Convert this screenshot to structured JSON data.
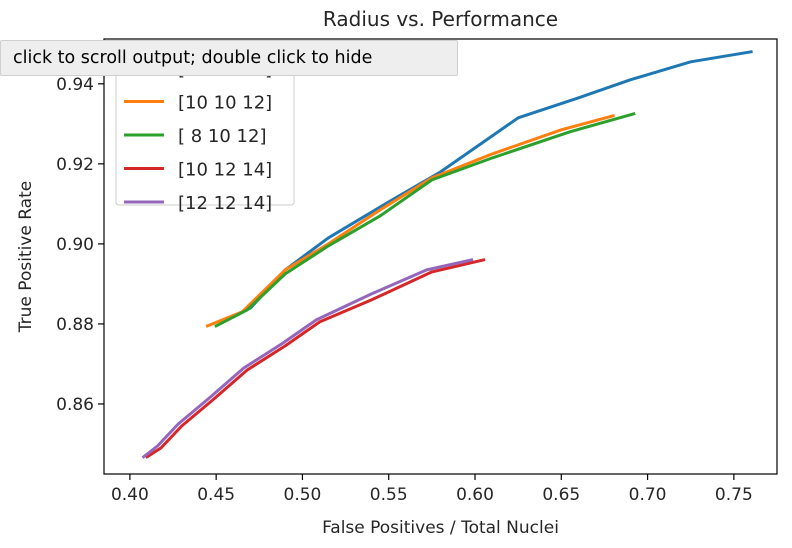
{
  "banner": {
    "text": "click to scroll output; double click to hide"
  },
  "chart_data": {
    "type": "line",
    "title": "Radius vs. Performance",
    "xlabel": "False Positives / Total Nuclei",
    "ylabel": "True Positive Rate",
    "xlim": [
      0.385,
      0.775
    ],
    "ylim": [
      0.8425,
      0.9512
    ],
    "xticks": [
      0.4,
      0.45,
      0.5,
      0.55,
      0.6,
      0.65,
      0.7,
      0.75
    ],
    "xtick_labels": [
      "0.40",
      "0.45",
      "0.50",
      "0.55",
      "0.60",
      "0.65",
      "0.70",
      "0.75"
    ],
    "yticks": [
      0.86,
      0.88,
      0.9,
      0.92,
      0.94
    ],
    "ytick_labels": [
      "0.86",
      "0.88",
      "0.90",
      "0.92",
      "0.94"
    ],
    "grid": false,
    "legend_position": "upper-left",
    "series": [
      {
        "name": "[10 10 10]",
        "color": "#1f77b4",
        "x": [
          0.453,
          0.47,
          0.49,
          0.515,
          0.55,
          0.58,
          0.625,
          0.66,
          0.69,
          0.725,
          0.76
        ],
        "y": [
          0.8805,
          0.884,
          0.8935,
          0.9015,
          0.9105,
          0.918,
          0.9315,
          0.9365,
          0.941,
          0.9455,
          0.948
        ]
      },
      {
        "name": "[10 10 12]",
        "color": "#ff7f0e",
        "x": [
          0.445,
          0.465,
          0.49,
          0.515,
          0.545,
          0.575,
          0.61,
          0.65,
          0.68
        ],
        "y": [
          0.8795,
          0.883,
          0.8935,
          0.9,
          0.9085,
          0.9165,
          0.9225,
          0.9285,
          0.932
        ]
      },
      {
        "name": "[ 8 10 12]",
        "color": "#2ca02c",
        "x": [
          0.45,
          0.468,
          0.49,
          0.515,
          0.545,
          0.575,
          0.61,
          0.655,
          0.692
        ],
        "y": [
          0.8795,
          0.8835,
          0.8925,
          0.8995,
          0.907,
          0.916,
          0.9215,
          0.928,
          0.9325
        ]
      },
      {
        "name": "[10 12 14]",
        "color": "#d62728",
        "x": [
          0.41,
          0.418,
          0.43,
          0.448,
          0.468,
          0.49,
          0.51,
          0.54,
          0.575,
          0.605
        ],
        "y": [
          0.8468,
          0.849,
          0.8545,
          0.861,
          0.8685,
          0.8745,
          0.8805,
          0.886,
          0.893,
          0.896
        ]
      },
      {
        "name": "[12 12 14]",
        "color": "#9467bd",
        "x": [
          0.408,
          0.416,
          0.428,
          0.446,
          0.466,
          0.488,
          0.508,
          0.54,
          0.572,
          0.598
        ],
        "y": [
          0.8468,
          0.8495,
          0.855,
          0.8615,
          0.869,
          0.875,
          0.881,
          0.8875,
          0.8935,
          0.896
        ]
      }
    ]
  }
}
